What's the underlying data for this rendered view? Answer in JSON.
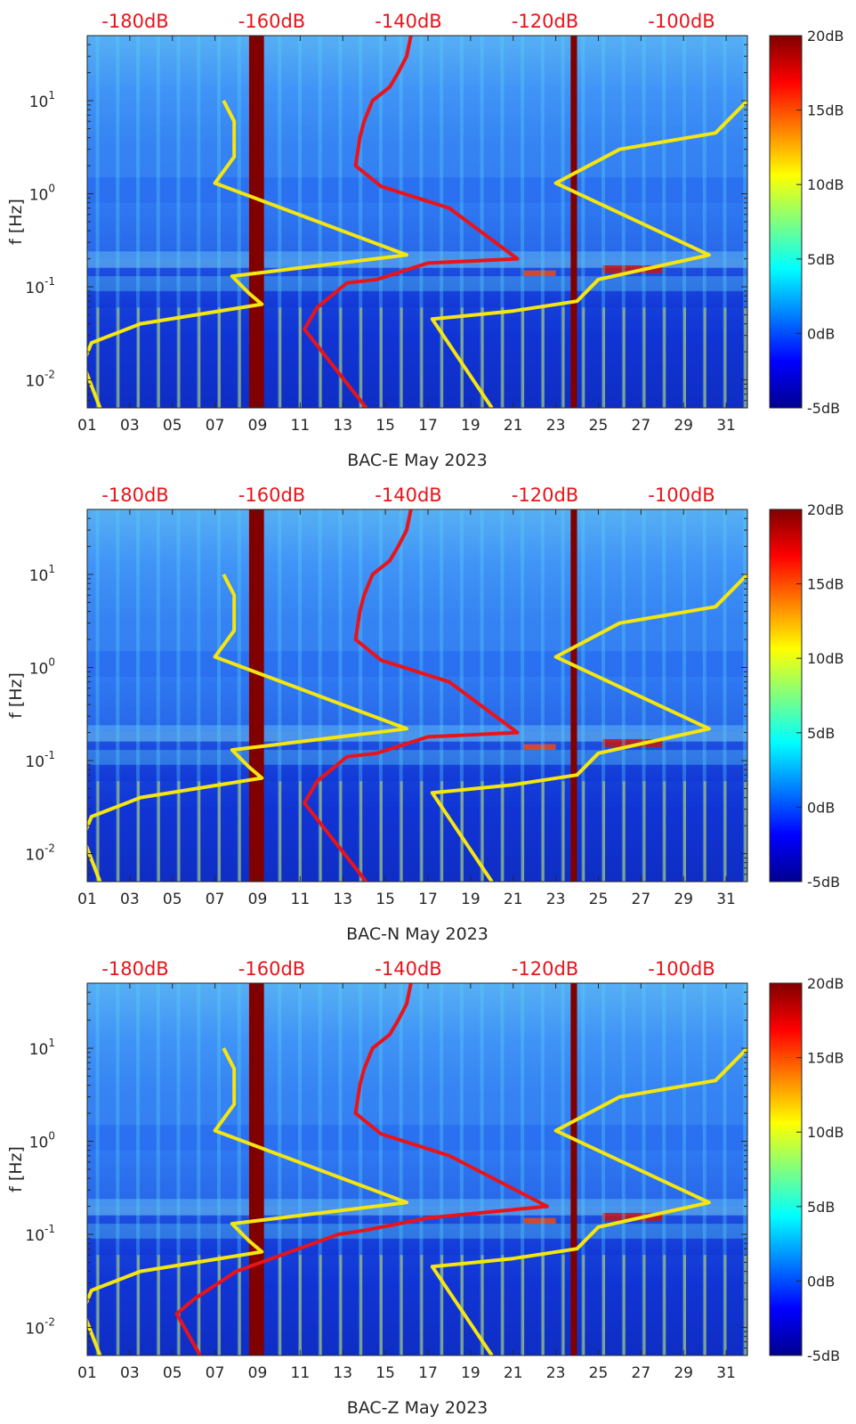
{
  "chart_data": [
    {
      "type": "heatmap",
      "xlabel": "BAC-E May 2023",
      "ylabel": "f [Hz]",
      "x_ticks": [
        "01",
        "03",
        "05",
        "07",
        "09",
        "11",
        "13",
        "15",
        "17",
        "19",
        "21",
        "23",
        "25",
        "27",
        "29",
        "31"
      ],
      "y_ticks": [
        {
          "value": 0.01,
          "base": "10",
          "exp": "-2"
        },
        {
          "value": 0.1,
          "base": "10",
          "exp": "-1"
        },
        {
          "value": 1,
          "base": "10",
          "exp": "0"
        },
        {
          "value": 10,
          "base": "10",
          "exp": "1"
        }
      ],
      "y_scale": "log",
      "xlim": [
        1,
        32
      ],
      "ylim": [
        0.005,
        50
      ],
      "colorbar": {
        "ticks": [
          "20dB",
          "15dB",
          "10dB",
          "5dB",
          "0dB",
          "-5dB"
        ],
        "range_db": [
          -5,
          20
        ],
        "colormap": "jet"
      },
      "top_axis": {
        "ticks": [
          "-180dB",
          "-160dB",
          "-140dB",
          "-120dB",
          "-100dB"
        ],
        "color": "#e8141a"
      },
      "overlays": [
        {
          "color": "#f5e60f",
          "points": [
            [
              7.4,
              10
            ],
            [
              7.9,
              6
            ],
            [
              7.9,
              2.5
            ],
            [
              7,
              1.3
            ],
            [
              16,
              0.22
            ],
            [
              7.8,
              0.13
            ],
            [
              8.6,
              0.085
            ],
            [
              9.2,
              0.065
            ],
            [
              3.5,
              0.04
            ],
            [
              1.2,
              0.025
            ],
            [
              0.8,
              0.015
            ],
            [
              1.6,
              0.005
            ]
          ]
        },
        {
          "color": "#f5e60f",
          "points": [
            [
              32,
              10
            ],
            [
              30.5,
              4.5
            ],
            [
              26,
              3
            ],
            [
              23,
              1.3
            ],
            [
              30.2,
              0.22
            ],
            [
              25,
              0.12
            ],
            [
              24,
              0.07
            ],
            [
              21,
              0.055
            ],
            [
              17.2,
              0.045
            ],
            [
              20,
              0.005
            ]
          ]
        },
        {
          "color": "#e8141a",
          "points": [
            [
              16.2,
              50
            ],
            [
              16,
              30
            ],
            [
              15.6,
              20
            ],
            [
              15.2,
              14
            ],
            [
              14.4,
              10
            ],
            [
              14,
              6
            ],
            [
              13.8,
              4
            ],
            [
              13.6,
              2
            ],
            [
              14.8,
              1.2
            ],
            [
              18,
              0.7
            ],
            [
              21.2,
              0.2
            ],
            [
              17,
              0.18
            ],
            [
              14.6,
              0.12
            ],
            [
              13.2,
              0.11
            ],
            [
              11.8,
              0.06
            ],
            [
              11.2,
              0.035
            ],
            [
              14.1,
              0.005
            ]
          ]
        }
      ]
    },
    {
      "type": "heatmap",
      "xlabel": "BAC-N May 2023",
      "ylabel": "f [Hz]",
      "x_ticks": [
        "01",
        "03",
        "05",
        "07",
        "09",
        "11",
        "13",
        "15",
        "17",
        "19",
        "21",
        "23",
        "25",
        "27",
        "29",
        "31"
      ],
      "y_ticks": [
        {
          "value": 0.01,
          "base": "10",
          "exp": "-2"
        },
        {
          "value": 0.1,
          "base": "10",
          "exp": "-1"
        },
        {
          "value": 1,
          "base": "10",
          "exp": "0"
        },
        {
          "value": 10,
          "base": "10",
          "exp": "1"
        }
      ],
      "y_scale": "log",
      "xlim": [
        1,
        32
      ],
      "ylim": [
        0.005,
        50
      ],
      "colorbar": {
        "ticks": [
          "20dB",
          "15dB",
          "10dB",
          "5dB",
          "0dB",
          "-5dB"
        ],
        "range_db": [
          -5,
          20
        ],
        "colormap": "jet"
      },
      "top_axis": {
        "ticks": [
          "-180dB",
          "-160dB",
          "-140dB",
          "-120dB",
          "-100dB"
        ],
        "color": "#e8141a"
      },
      "overlays": [
        {
          "color": "#f5e60f",
          "points": [
            [
              7.4,
              10
            ],
            [
              7.9,
              6
            ],
            [
              7.9,
              2.5
            ],
            [
              7,
              1.3
            ],
            [
              16,
              0.22
            ],
            [
              7.8,
              0.13
            ],
            [
              8.6,
              0.085
            ],
            [
              9.2,
              0.065
            ],
            [
              3.5,
              0.04
            ],
            [
              1.2,
              0.025
            ],
            [
              0.8,
              0.015
            ],
            [
              1.6,
              0.005
            ]
          ]
        },
        {
          "color": "#f5e60f",
          "points": [
            [
              32,
              10
            ],
            [
              30.5,
              4.5
            ],
            [
              26,
              3
            ],
            [
              23,
              1.3
            ],
            [
              30.2,
              0.22
            ],
            [
              25,
              0.12
            ],
            [
              24,
              0.07
            ],
            [
              21,
              0.055
            ],
            [
              17.2,
              0.045
            ],
            [
              20,
              0.005
            ]
          ]
        },
        {
          "color": "#e8141a",
          "points": [
            [
              16.2,
              50
            ],
            [
              16,
              30
            ],
            [
              15.6,
              20
            ],
            [
              15.2,
              14
            ],
            [
              14.4,
              10
            ],
            [
              14,
              6
            ],
            [
              13.8,
              4
            ],
            [
              13.6,
              2
            ],
            [
              14.8,
              1.2
            ],
            [
              18,
              0.7
            ],
            [
              21.2,
              0.2
            ],
            [
              17,
              0.18
            ],
            [
              14.6,
              0.12
            ],
            [
              13.2,
              0.11
            ],
            [
              11.8,
              0.06
            ],
            [
              11.2,
              0.035
            ],
            [
              14.1,
              0.005
            ]
          ]
        }
      ]
    },
    {
      "type": "heatmap",
      "xlabel": "BAC-Z May 2023",
      "ylabel": "f [Hz]",
      "x_ticks": [
        "01",
        "03",
        "05",
        "07",
        "09",
        "11",
        "13",
        "15",
        "17",
        "19",
        "21",
        "23",
        "25",
        "27",
        "29",
        "31"
      ],
      "y_ticks": [
        {
          "value": 0.01,
          "base": "10",
          "exp": "-2"
        },
        {
          "value": 0.1,
          "base": "10",
          "exp": "-1"
        },
        {
          "value": 1,
          "base": "10",
          "exp": "0"
        },
        {
          "value": 10,
          "base": "10",
          "exp": "1"
        }
      ],
      "y_scale": "log",
      "xlim": [
        1,
        32
      ],
      "ylim": [
        0.005,
        50
      ],
      "colorbar": {
        "ticks": [
          "20dB",
          "15dB",
          "10dB",
          "5dB",
          "0dB",
          "-5dB"
        ],
        "range_db": [
          -5,
          20
        ],
        "colormap": "jet"
      },
      "top_axis": {
        "ticks": [
          "-180dB",
          "-160dB",
          "-140dB",
          "-120dB",
          "-100dB"
        ],
        "color": "#e8141a"
      },
      "overlays": [
        {
          "color": "#f5e60f",
          "points": [
            [
              7.4,
              10
            ],
            [
              7.9,
              6
            ],
            [
              7.9,
              2.5
            ],
            [
              7,
              1.3
            ],
            [
              16,
              0.22
            ],
            [
              7.8,
              0.13
            ],
            [
              8.6,
              0.085
            ],
            [
              9.2,
              0.065
            ],
            [
              3.5,
              0.04
            ],
            [
              1.2,
              0.025
            ],
            [
              0.8,
              0.015
            ],
            [
              1.6,
              0.005
            ]
          ]
        },
        {
          "color": "#f5e60f",
          "points": [
            [
              32,
              10
            ],
            [
              30.5,
              4.5
            ],
            [
              26,
              3
            ],
            [
              23,
              1.3
            ],
            [
              30.2,
              0.22
            ],
            [
              25,
              0.12
            ],
            [
              24,
              0.07
            ],
            [
              21,
              0.055
            ],
            [
              17.2,
              0.045
            ],
            [
              20,
              0.005
            ]
          ]
        },
        {
          "color": "#e8141a",
          "points": [
            [
              16.2,
              50
            ],
            [
              16,
              30
            ],
            [
              15.6,
              20
            ],
            [
              15.2,
              14
            ],
            [
              14.4,
              10
            ],
            [
              14,
              6
            ],
            [
              13.8,
              4
            ],
            [
              13.6,
              2
            ],
            [
              14.8,
              1.2
            ],
            [
              18,
              0.7
            ],
            [
              22.6,
              0.2
            ],
            [
              17,
              0.15
            ],
            [
              14,
              0.11
            ],
            [
              12.8,
              0.1
            ],
            [
              8,
              0.04
            ],
            [
              6,
              0.02
            ],
            [
              5.2,
              0.014
            ],
            [
              6.3,
              0.005
            ]
          ]
        }
      ]
    }
  ]
}
